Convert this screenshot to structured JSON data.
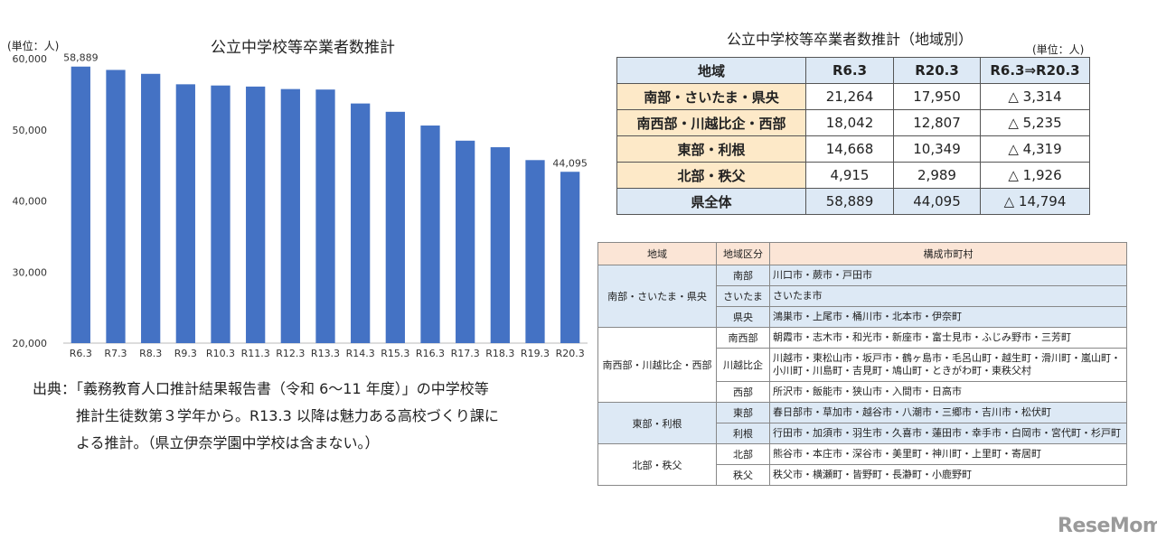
{
  "chart_data": {
    "type": "bar",
    "title": "公立中学校等卒業者数推計",
    "unit_label": "(単位：人)",
    "categories": [
      "R6.3",
      "R7.3",
      "R8.3",
      "R9.3",
      "R10.3",
      "R11.3",
      "R12.3",
      "R13.3",
      "R14.3",
      "R15.3",
      "R16.3",
      "R17.3",
      "R18.3",
      "R19.3",
      "R20.3"
    ],
    "values": [
      58889,
      58420,
      57870,
      56400,
      56230,
      56080,
      55730,
      55660,
      53700,
      52530,
      50600,
      48470,
      47550,
      45740,
      44095
    ],
    "data_labels": [
      {
        "index": 0,
        "text": "58,889"
      },
      {
        "index": 14,
        "text": "44,095"
      }
    ],
    "ylim": [
      20000,
      60000
    ],
    "yticks": [
      "20,000",
      "30,000",
      "40,000",
      "50,000",
      "60,000"
    ],
    "ytick_values": [
      20000,
      30000,
      40000,
      50000,
      60000
    ],
    "bar_color": "#4472c4",
    "grid": false
  },
  "source_note": {
    "line1": "出典：「義務教育人口推計結果報告書（令和 6〜11 年度）」の中学校等",
    "line2": "推計生徒数第３学年から。R13.3 以降は魅力ある高校づくり課に",
    "line3": "よる推計。（県立伊奈学園中学校は含まない。）"
  },
  "summary": {
    "title": "公立中学校等卒業者数推計（地域別）",
    "unit": "(単位：人)",
    "headers": [
      "地域",
      "R6.3",
      "R20.3",
      "R6.3⇒R20.3"
    ],
    "rows": [
      [
        "南部・さいたま・県央",
        "21,264",
        "17,950",
        "△ 3,314"
      ],
      [
        "南西部・川越比企・西部",
        "18,042",
        "12,807",
        "△ 5,235"
      ],
      [
        "東部・利根",
        "14,668",
        "10,349",
        "△ 4,319"
      ],
      [
        "北部・秩父",
        "4,915",
        "2,989",
        "△ 1,926"
      ],
      [
        "県全体",
        "58,889",
        "44,095",
        "△ 14,794"
      ]
    ]
  },
  "municipalities": {
    "headers": [
      "地域",
      "地域区分",
      "構成市町村"
    ],
    "groups": [
      {
        "area": "南部・さいたま・県央",
        "subs": [
          {
            "name": "南部",
            "cities": "川口市・蕨市・戸田市"
          },
          {
            "name": "さいたま",
            "cities": "さいたま市"
          },
          {
            "name": "県央",
            "cities": "鴻巣市・上尾市・桶川市・北本市・伊奈町"
          }
        ]
      },
      {
        "area": "南西部・川越比企・西部",
        "subs": [
          {
            "name": "南西部",
            "cities": "朝霞市・志木市・和光市・新座市・富士見市・ふじみ野市・三芳町"
          },
          {
            "name": "川越比企",
            "cities": "川越市・東松山市・坂戸市・鶴ヶ島市・毛呂山町・越生町・滑川町・嵐山町・小川町・川島町・吉見町・鳩山町・ときがわ町・東秩父村"
          },
          {
            "name": "西部",
            "cities": "所沢市・飯能市・狭山市・入間市・日高市"
          }
        ]
      },
      {
        "area": "東部・利根",
        "subs": [
          {
            "name": "東部",
            "cities": "春日部市・草加市・越谷市・八潮市・三郷市・吉川市・松伏町"
          },
          {
            "name": "利根",
            "cities": "行田市・加須市・羽生市・久喜市・蓮田市・幸手市・白岡市・宮代町・杉戸町"
          }
        ]
      },
      {
        "area": "北部・秩父",
        "subs": [
          {
            "name": "北部",
            "cities": "熊谷市・本庄市・深谷市・美里町・神川町・上里町・寄居町"
          },
          {
            "name": "秩父",
            "cities": "秩父市・横瀬町・皆野町・長瀞町・小鹿野町"
          }
        ]
      }
    ]
  },
  "brand": {
    "text": "ReseMom"
  }
}
